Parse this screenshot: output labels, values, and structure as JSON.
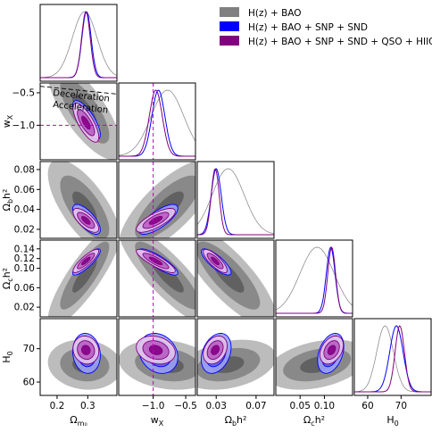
{
  "chart_data": {
    "type": "corner",
    "parameters": [
      {
        "key": "om",
        "label": "Ω",
        "label_sub": "m₀",
        "ticks": [
          "0.2",
          "0.3"
        ],
        "tick_values": [
          0.2,
          0.3
        ],
        "range": [
          0.145,
          0.395
        ]
      },
      {
        "key": "wx",
        "label": "w",
        "label_sub": "X",
        "ticks": [
          "−1.0",
          "−0.5"
        ],
        "tick_values": [
          -1.0,
          -0.5
        ],
        "range": [
          -1.53,
          -0.35
        ]
      },
      {
        "key": "obh2",
        "label": "Ω",
        "label_sub": "b",
        "label_suffix": "h²",
        "ticks": [
          "0.03",
          "0.07"
        ],
        "tick_values": [
          0.03,
          0.07
        ],
        "range": [
          0.011,
          0.088
        ]
      },
      {
        "key": "och2",
        "label": "Ω",
        "label_sub": "c",
        "label_suffix": "h²",
        "ticks": [
          "0.05",
          "0.10"
        ],
        "tick_values": [
          0.05,
          0.1
        ],
        "range": [
          0.0,
          0.158
        ]
      },
      {
        "key": "h0",
        "label": "H",
        "label_sub": "0",
        "ticks": [
          "60",
          "70"
        ],
        "tick_values": [
          60,
          70
        ],
        "range": [
          56.0,
          79.0
        ]
      }
    ],
    "row_ticks": {
      "wx": {
        "labels": [
          "−0.5",
          "−1.0"
        ],
        "values": [
          -0.5,
          -1.0
        ]
      },
      "obh2": {
        "labels": [
          "0.08",
          "0.06",
          "0.04",
          "0.02"
        ],
        "values": [
          0.08,
          0.06,
          0.04,
          0.02
        ]
      },
      "och2": {
        "labels": [
          "0.14",
          "0.12",
          "0.10",
          "0.06",
          "0.02"
        ],
        "values": [
          0.14,
          0.12,
          0.1,
          0.06,
          0.02
        ]
      },
      "h0": {
        "labels": [
          "70",
          "60"
        ],
        "values": [
          70,
          60
        ]
      }
    },
    "legend": {
      "placement": "top-right",
      "entries": [
        {
          "label": "H(z) + BAO",
          "color": "#808080"
        },
        {
          "label": "H(z) + BAO + SNP + SND",
          "color": "#0000ff"
        },
        {
          "label": "H(z) + BAO + SNP + SND + QSO + HIIG",
          "color": "#800080"
        }
      ]
    },
    "annotations": {
      "deceleration": "Deceleration",
      "acceleration": "Acceleration"
    },
    "reference_line": {
      "parameter": "wx",
      "value": -1.0,
      "color": "#c000c0",
      "style": "dashed"
    },
    "series": [
      {
        "name": "H(z) + BAO",
        "fill": [
          "#b0b0b0",
          "#808080",
          "#5a5a5a"
        ],
        "line": "#808080",
        "mean": {
          "om": 0.29,
          "wx": -0.78,
          "obh2": 0.042,
          "och2": 0.085,
          "h0": 65.2
        },
        "sigma": {
          "om": 0.04,
          "wx": 0.25,
          "obh2": 0.016,
          "och2": 0.035,
          "h0": 2.5
        }
      },
      {
        "name": "H(z) + BAO + SNP + SND",
        "fill": [
          "#9aa2f5",
          "#5b62e6",
          "#2a2fd0"
        ],
        "line": "#0000ff",
        "mean": {
          "om": 0.296,
          "wx": -0.92,
          "obh2": 0.03,
          "och2": 0.113,
          "h0": 68.6
        },
        "sigma": {
          "om": 0.015,
          "wx": 0.1,
          "obh2": 0.005,
          "och2": 0.009,
          "h0": 2.0
        }
      },
      {
        "name": "H(z) + BAO + SNP + SND + QSO + HIIG",
        "fill": [
          "#e4c6ea",
          "#b85fc2",
          "#840084"
        ],
        "line": "#800080",
        "mean": {
          "om": 0.294,
          "wx": -0.96,
          "obh2": 0.029,
          "och2": 0.115,
          "h0": 69.6
        },
        "sigma": {
          "om": 0.014,
          "wx": 0.1,
          "obh2": 0.004,
          "och2": 0.008,
          "h0": 1.4
        }
      }
    ]
  }
}
